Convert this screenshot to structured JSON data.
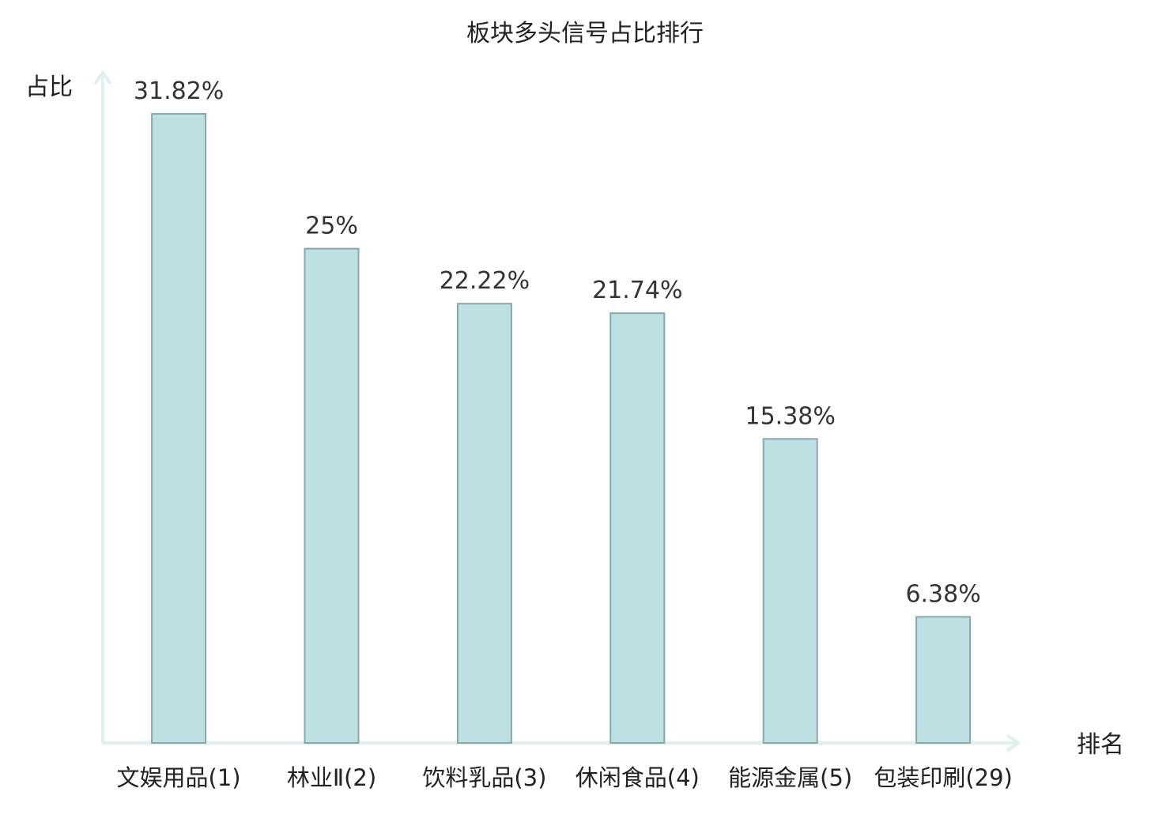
{
  "chart_data": {
    "type": "bar",
    "title": "板块多头信号占比排行",
    "ylabel": "占比",
    "xlabel": "排名",
    "ylim": [
      0,
      33.9
    ],
    "grid": false,
    "categories": [
      "文娱用品(1)",
      "林业Ⅱ(2)",
      "饮料乳品(3)",
      "休闲食品(4)",
      "能源金属(5)",
      "包装印刷(29)"
    ],
    "values": [
      31.82,
      25,
      22.22,
      21.74,
      15.38,
      6.38
    ],
    "value_labels": [
      "31.82%",
      "25%",
      "22.22%",
      "21.74%",
      "15.38%",
      "6.38%"
    ],
    "highlight_index": 5,
    "colors": {
      "bar_fill": "#bde0e3",
      "bar_stroke": "#8aa7aa",
      "axis": "#dff1ef",
      "highlight_text": "#e02020",
      "text": "#222222"
    }
  }
}
